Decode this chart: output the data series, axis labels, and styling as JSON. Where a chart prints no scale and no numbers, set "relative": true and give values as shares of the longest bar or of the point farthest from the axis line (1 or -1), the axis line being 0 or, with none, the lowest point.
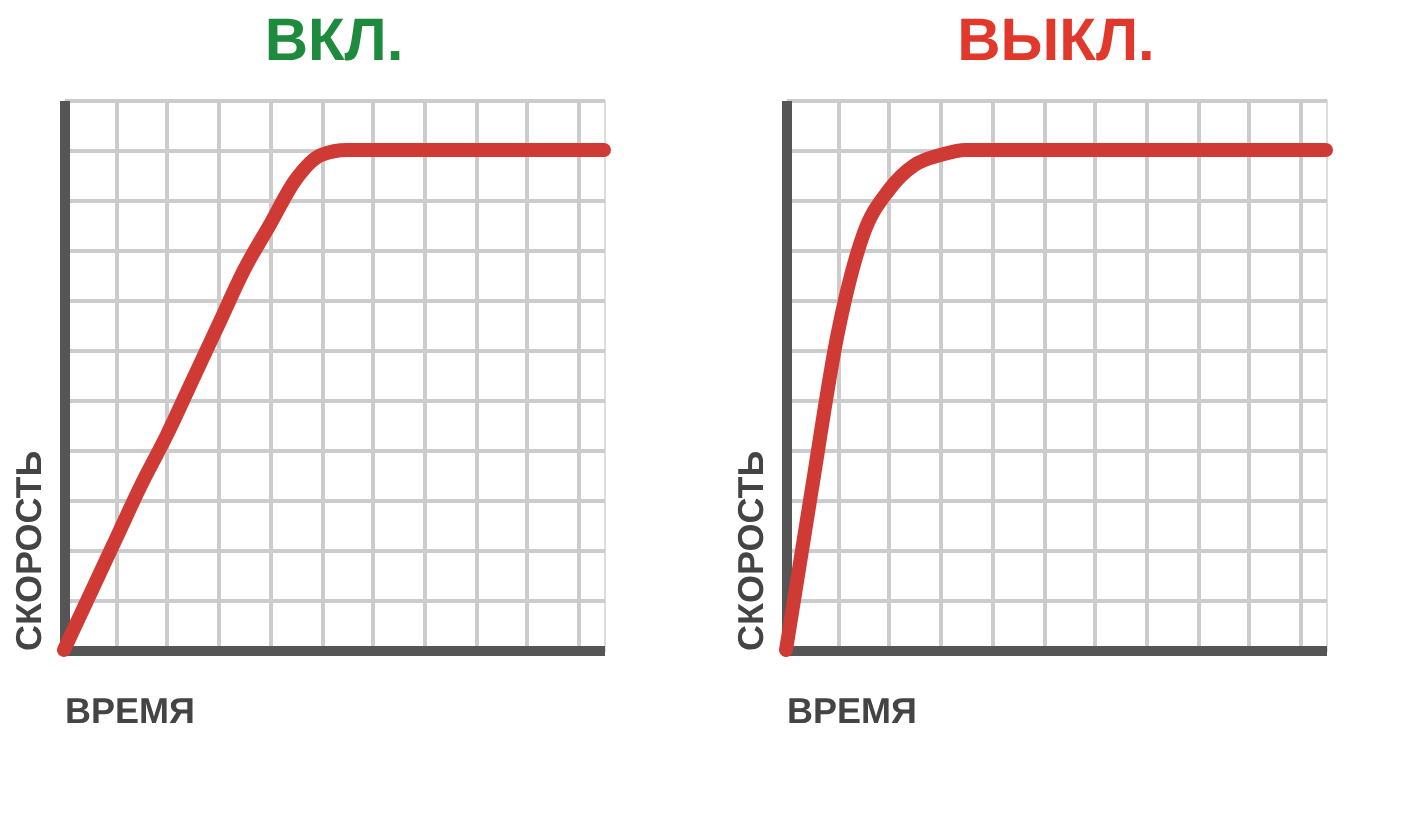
{
  "chart_data": [
    {
      "type": "line",
      "title": "ВКЛ.",
      "xlabel": "ВРЕМЯ",
      "ylabel": "СКОРОСТЬ",
      "relative": true,
      "grid": true,
      "marker": "none",
      "line_style": "solid",
      "categories": [
        null,
        null,
        null,
        null,
        null,
        null,
        null,
        null,
        null,
        null,
        null,
        null,
        null,
        null,
        null,
        null,
        null,
        null,
        null,
        null,
        null,
        null
      ],
      "series": [
        {
          "color": "#d03a35",
          "values": [
            0,
            0.11,
            0.22,
            0.33,
            0.43,
            0.54,
            0.65,
            0.76,
            0.85,
            0.94,
            0.99,
            1,
            1,
            1,
            1,
            1,
            1,
            1,
            1,
            1,
            1,
            1
          ]
        }
      ]
    },
    {
      "type": "line",
      "title": "ВЫКЛ.",
      "xlabel": "ВРЕМЯ",
      "ylabel": "СКОРОСТЬ",
      "relative": true,
      "grid": true,
      "marker": "none",
      "line_style": "solid",
      "categories": [
        null,
        null,
        null,
        null,
        null,
        null,
        null,
        null,
        null,
        null,
        null,
        null,
        null,
        null,
        null,
        null,
        null,
        null,
        null,
        null,
        null,
        null
      ],
      "series": [
        {
          "color": "#d03a35",
          "values": [
            0,
            0.32,
            0.63,
            0.83,
            0.92,
            0.97,
            0.99,
            1,
            1,
            1,
            1,
            1,
            1,
            1,
            1,
            1,
            1,
            1,
            1,
            1,
            1,
            1
          ]
        }
      ]
    }
  ]
}
